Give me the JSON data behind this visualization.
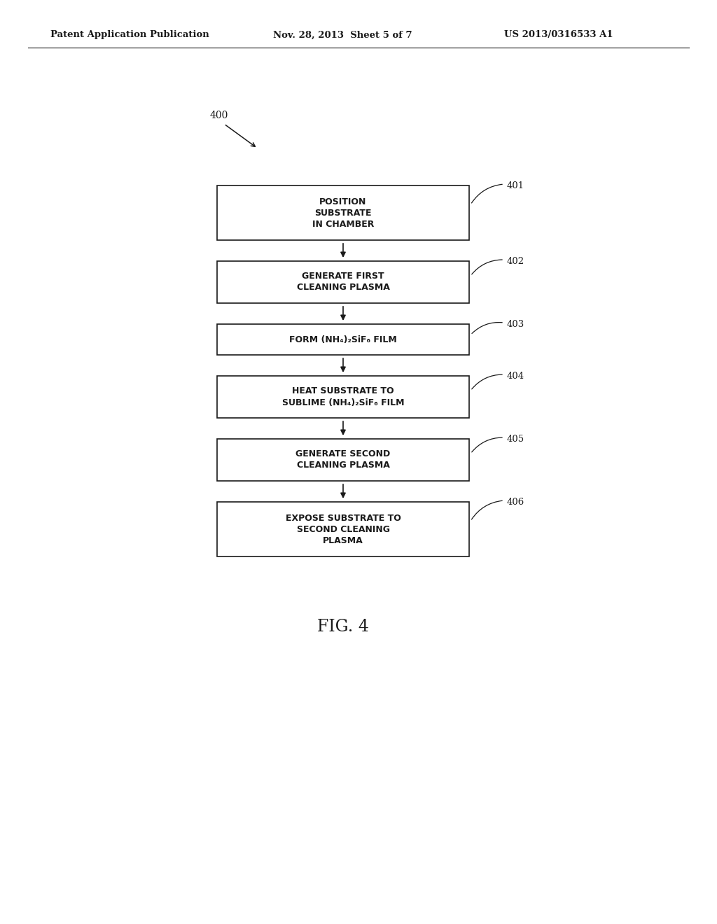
{
  "bg_color": "#ffffff",
  "header_left": "Patent Application Publication",
  "header_mid": "Nov. 28, 2013  Sheet 5 of 7",
  "header_right": "US 2013/0316533 A1",
  "fig_label": "FIG. 4",
  "diagram_label": "400",
  "boxes": [
    {
      "id": 401,
      "label": "POSITION\nSUBSTRATE\nIN CHAMBER"
    },
    {
      "id": 402,
      "label": "GENERATE FIRST\nCLEANING PLASMA"
    },
    {
      "id": 403,
      "label": "FORM (NH₄)₂SiF₆ FILM"
    },
    {
      "id": 404,
      "label": "HEAT SUBSTRATE TO\nSUBLIME (NH₄)₂SiF₆ FILM"
    },
    {
      "id": 405,
      "label": "GENERATE SECOND\nCLEANING PLASMA"
    },
    {
      "id": 406,
      "label": "EXPOSE SUBSTRATE TO\nSECOND CLEANING\nPLASMA"
    }
  ],
  "line_color": "#1a1a1a",
  "text_color": "#1a1a1a",
  "font_size_box": 9.0,
  "font_size_header": 9.5,
  "font_size_refnum": 9.5,
  "font_size_fig": 17,
  "font_size_400": 10
}
